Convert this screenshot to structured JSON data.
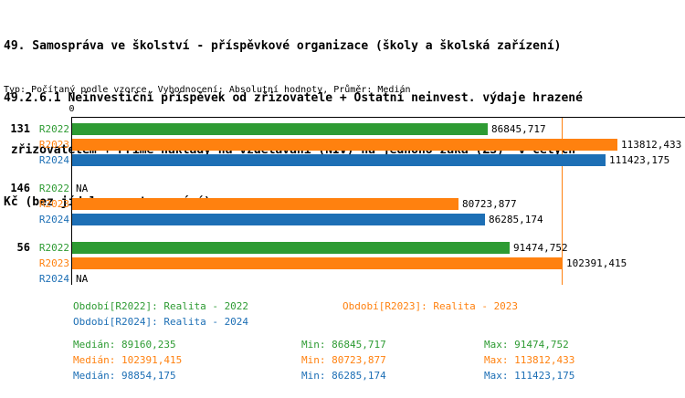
{
  "title_lines": [
    "49. Samospráva ve školství - příspěvkové organizace (školy a školská zařízení)",
    "49.2.6.1 Neinvestiční příspěvek od zřizovatele + Ostatní neinvest. výdaje hrazené",
    " zřizovatelem + Přímé náklady na vzdělávání (NIV) na jednoho žáka (ZŠ)  v celých",
    "Kč (bez jídelen a stravování)"
  ],
  "subtitle": "Typ: Počítaný podle vzorce, Vyhodnocení: Absolutní hodnoty, Průměr: Medián",
  "chart_data": {
    "type": "bar",
    "orientation": "horizontal",
    "legend_position": "bottom",
    "x_axis": {
      "zero_label": "0",
      "max": 120000,
      "grid": false
    },
    "series": [
      {
        "name": "R2022",
        "color": "#2e9b33"
      },
      {
        "name": "R2023",
        "color": "#ff810f"
      },
      {
        "name": "R2024",
        "color": "#1d6fb5"
      }
    ],
    "groups": [
      {
        "label": "131",
        "values": [
          86845.717,
          113812.433,
          111423.175
        ],
        "displays": [
          "86845,717",
          "113812,433",
          "111423,175"
        ]
      },
      {
        "label": "146",
        "values": [
          null,
          80723.877,
          86285.174
        ],
        "displays": [
          "NA",
          "80723,877",
          "86285,174"
        ]
      },
      {
        "label": "56",
        "values": [
          91474.752,
          102391.415,
          null
        ],
        "displays": [
          "91474,752",
          "102391,415",
          "NA"
        ]
      }
    ],
    "median_line": {
      "value": 102391.415,
      "color": "#ff810f"
    }
  },
  "legend": {
    "items": [
      {
        "label": "Období[R2022]: Realita - 2022",
        "color": "#2e9b33"
      },
      {
        "label": "Období[R2023]: Realita - 2023",
        "color": "#ff810f"
      },
      {
        "label": "Období[R2024]: Realita - 2024",
        "color": "#1d6fb5"
      }
    ]
  },
  "stats": {
    "rows": [
      {
        "color": "#2e9b33",
        "median": "Medián: 89160,235",
        "min": "Min: 86845,717",
        "max": "Max: 91474,752"
      },
      {
        "color": "#ff810f",
        "median": "Medián: 102391,415",
        "min": "Min: 80723,877",
        "max": "Max: 113812,433"
      },
      {
        "color": "#1d6fb5",
        "median": "Medián: 98854,175",
        "min": "Min: 86285,174",
        "max": "Max: 111423,175"
      }
    ]
  }
}
